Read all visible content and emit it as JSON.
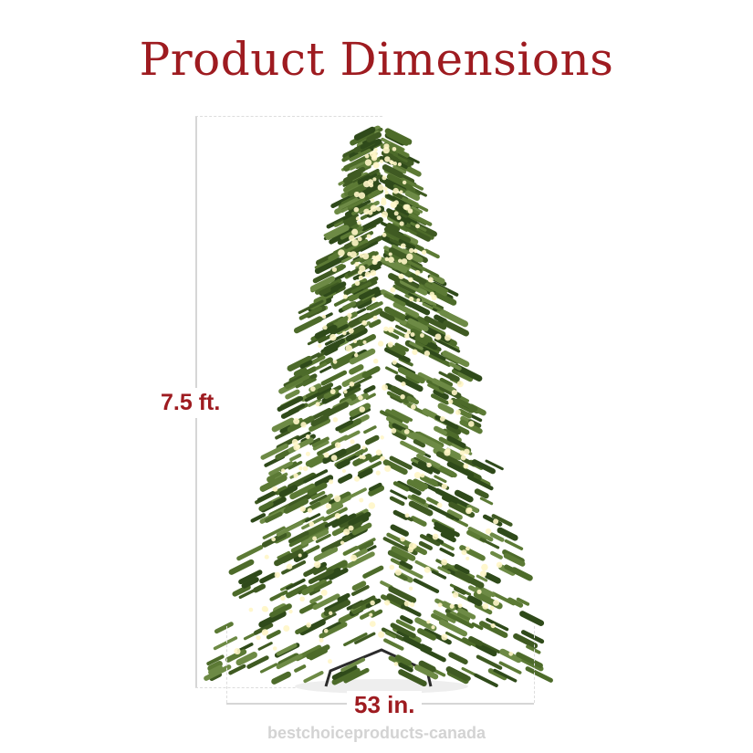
{
  "title": "Product Dimensions",
  "height_label": "7.5 ft.",
  "width_label": "53 in.",
  "watermark": "bestchoiceproducts-canada",
  "colors": {
    "accent": "#9e1b20",
    "tree": "#3f5a22",
    "lights": "#fff6c8",
    "lines": "#d6d6d6"
  }
}
